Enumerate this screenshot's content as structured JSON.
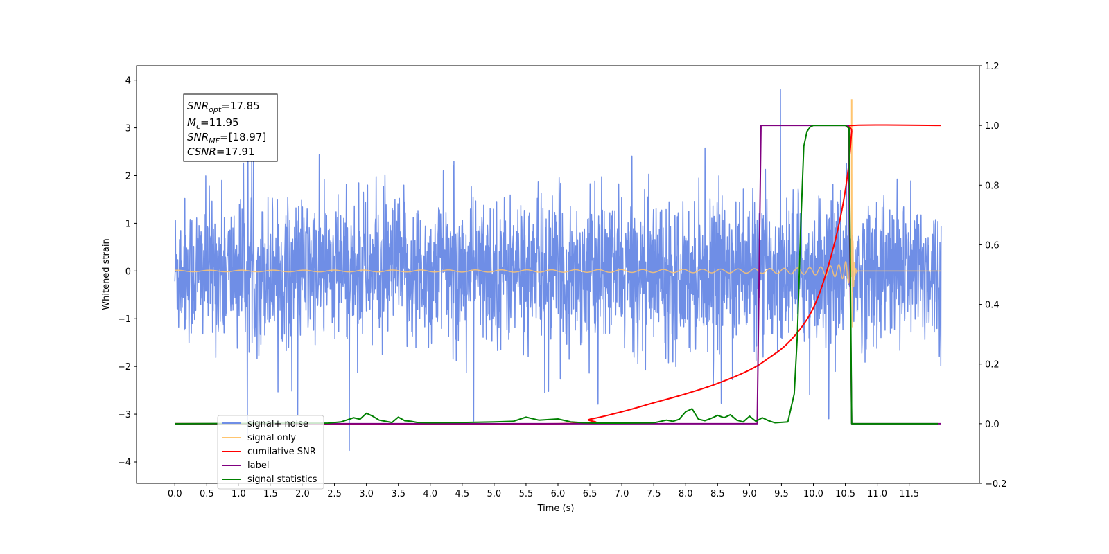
{
  "chart_data": {
    "type": "line",
    "xlabel": "Time (s)",
    "ylabel": "Whitened strain",
    "x_ticks": [
      "0.0",
      "0.5",
      "1.0",
      "1.5",
      "2.0",
      "2.5",
      "3.0",
      "3.5",
      "4.0",
      "4.5",
      "5.0",
      "5.5",
      "6.0",
      "6.5",
      "7.0",
      "7.5",
      "8.0",
      "8.5",
      "9.0",
      "9.5",
      "10.0",
      "10.5",
      "11.0",
      "11.5"
    ],
    "y_ticks": [
      "4",
      "3",
      "2",
      "1",
      "0",
      "−1",
      "−2",
      "−3",
      "−4"
    ],
    "y2_ticks": [
      "1.2",
      "1.0",
      "0.8",
      "0.6",
      "0.4",
      "0.2",
      "0.0",
      "−0.2"
    ],
    "xlim": [
      -0.6,
      12.6
    ],
    "ylim": [
      -4.45,
      4.3
    ],
    "y2lim": [
      -0.2,
      1.2
    ],
    "legend_position": "lower-left",
    "annotation": {
      "snr_opt": {
        "base": "SNR",
        "sub": "opt",
        "value": "=17.85"
      },
      "mc": {
        "base": "M",
        "sub": "c",
        "value": "=11.95"
      },
      "snr_mf": {
        "base": "SNR",
        "sub": "MF",
        "value": "=[18.97]"
      },
      "csnr": {
        "base": "CSNR",
        "value": "=17.91"
      }
    },
    "series": [
      {
        "name": "signal+ noise",
        "color": "#6f8ee6",
        "axis": "left",
        "kind": "gaussian-noise",
        "sigma": 0.75,
        "t_start": 0.0,
        "t_end": 12.0
      },
      {
        "name": "signal only",
        "color": "#ffc56f",
        "axis": "left",
        "kind": "chirp",
        "merger_time": 10.6,
        "peak_amplitude": 3.6
      },
      {
        "name": "cumilative SNR",
        "color": "#ff0000",
        "axis": "right",
        "x": [
          0.0,
          6.0,
          6.5,
          7.0,
          7.5,
          8.0,
          8.5,
          9.0,
          9.3,
          9.6,
          9.9,
          10.1,
          10.3,
          10.45,
          10.55,
          10.6,
          10.62,
          12.0
        ],
        "y": [
          0.0,
          0.0,
          0.015,
          0.04,
          0.07,
          0.1,
          0.135,
          0.18,
          0.22,
          0.27,
          0.35,
          0.44,
          0.58,
          0.72,
          0.86,
          0.98,
          1.0,
          1.0
        ]
      },
      {
        "name": "label",
        "color": "#800080",
        "axis": "right",
        "x": [
          0.0,
          9.12,
          9.18,
          10.55,
          10.6,
          12.0
        ],
        "y": [
          0.0,
          0.0,
          1.0,
          1.0,
          0.0,
          0.0
        ]
      },
      {
        "name": "signal statistics",
        "color": "#008000",
        "axis": "right",
        "x": [
          0.0,
          2.4,
          2.6,
          2.8,
          2.9,
          3.0,
          3.1,
          3.2,
          3.3,
          3.4,
          3.5,
          3.6,
          3.7,
          3.8,
          4.0,
          4.5,
          5.0,
          5.3,
          5.5,
          5.7,
          6.0,
          6.2,
          6.4,
          6.6,
          7.0,
          7.5,
          7.7,
          7.8,
          7.9,
          8.0,
          8.1,
          8.2,
          8.3,
          8.4,
          8.5,
          8.6,
          8.7,
          8.8,
          8.9,
          9.0,
          9.1,
          9.2,
          9.3,
          9.4,
          9.6,
          9.7,
          9.75,
          9.8,
          9.85,
          9.9,
          9.95,
          10.0,
          10.5,
          10.56,
          10.6,
          11.0,
          11.5,
          11.95
        ],
        "y": [
          0.0,
          0.002,
          0.006,
          0.02,
          0.015,
          0.035,
          0.025,
          0.012,
          0.008,
          0.004,
          0.022,
          0.01,
          0.008,
          0.004,
          0.003,
          0.004,
          0.006,
          0.008,
          0.022,
          0.012,
          0.016,
          0.006,
          0.003,
          0.002,
          0.002,
          0.003,
          0.012,
          0.008,
          0.015,
          0.04,
          0.05,
          0.015,
          0.01,
          0.018,
          0.028,
          0.02,
          0.03,
          0.012,
          0.006,
          0.025,
          0.008,
          0.02,
          0.01,
          0.003,
          0.006,
          0.1,
          0.3,
          0.65,
          0.93,
          0.98,
          0.995,
          1.0,
          1.0,
          0.99,
          0.0,
          0.0,
          0.0,
          0.0
        ]
      }
    ]
  }
}
